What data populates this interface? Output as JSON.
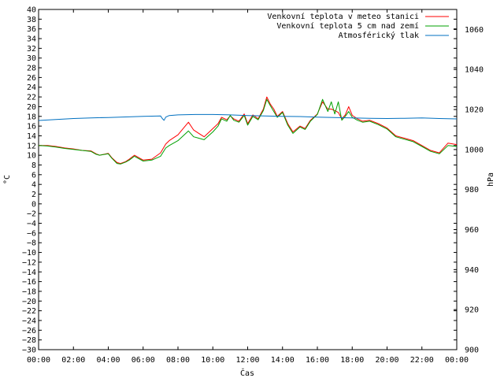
{
  "chart_data": {
    "type": "line",
    "xlabel": "Čas",
    "ylabel": "°C",
    "y2label": "hPa",
    "ylim": [
      -30,
      40
    ],
    "y2lim": [
      900,
      1070
    ],
    "yticks": [
      -30,
      -28,
      -26,
      -24,
      -22,
      -20,
      -18,
      -16,
      -14,
      -12,
      -10,
      -8,
      -6,
      -4,
      -2,
      0,
      2,
      4,
      6,
      8,
      10,
      12,
      14,
      16,
      18,
      20,
      22,
      24,
      26,
      28,
      30,
      32,
      34,
      36,
      38,
      40
    ],
    "y2ticks": [
      900,
      920,
      940,
      960,
      980,
      1000,
      1020,
      1040,
      1060
    ],
    "xticks": [
      "00:00",
      "02:00",
      "04:00",
      "06:00",
      "08:00",
      "10:00",
      "12:00",
      "14:00",
      "16:00",
      "18:00",
      "20:00",
      "22:00",
      "00:00"
    ],
    "xlim_hours": [
      0,
      24
    ],
    "legend_position": "top-right",
    "series": [
      {
        "name": "Venkovní teplota v meteo stanici",
        "color": "#ff0000",
        "axis": "left",
        "x": [
          0,
          0.5,
          1,
          1.5,
          2,
          2.5,
          3,
          3.3,
          3.5,
          4,
          4.2,
          4.5,
          4.7,
          5,
          5.2,
          5.5,
          6,
          6.5,
          7,
          7.3,
          7.5,
          8,
          8.3,
          8.6,
          8.9,
          9.2,
          9.5,
          10,
          10.3,
          10.5,
          10.8,
          11,
          11.2,
          11.5,
          11.8,
          12,
          12.3,
          12.6,
          12.9,
          13.1,
          13.3,
          13.5,
          13.7,
          14,
          14.3,
          14.6,
          15,
          15.3,
          15.6,
          16,
          16.3,
          16.6,
          16.8,
          17,
          17.2,
          17.4,
          17.6,
          17.8,
          18,
          18.3,
          18.6,
          19,
          19.5,
          20,
          20.5,
          21,
          21.5,
          22,
          22.5,
          23,
          23.5,
          24
        ],
        "y": [
          12,
          12,
          11.8,
          11.5,
          11.3,
          11,
          10.9,
          10.3,
          10,
          10.4,
          9.5,
          8.5,
          8.3,
          8.7,
          9.2,
          10,
          9,
          9.2,
          10.5,
          12.3,
          13,
          14.2,
          15.5,
          16.8,
          15.2,
          14.5,
          13.8,
          15.5,
          16.5,
          17.8,
          17.3,
          18.1,
          17.5,
          17,
          18.5,
          16.5,
          18.3,
          17.5,
          19.5,
          22,
          20.5,
          19.5,
          18,
          19,
          16.5,
          14.8,
          16,
          15.5,
          17.2,
          18.5,
          21,
          19.5,
          19.5,
          19.2,
          18.8,
          17.5,
          18.3,
          20,
          18.2,
          17.5,
          17,
          17.2,
          16.5,
          15.6,
          14,
          13.5,
          13,
          12,
          11,
          10.5,
          12.5,
          12.2
        ]
      },
      {
        "name": "Venkovní teplota 5 cm nad zemí",
        "color": "#00a000",
        "axis": "left",
        "x": [
          0,
          0.5,
          1,
          1.5,
          2,
          2.5,
          3,
          3.3,
          3.5,
          4,
          4.2,
          4.5,
          4.7,
          5,
          5.2,
          5.5,
          6,
          6.5,
          7,
          7.3,
          7.5,
          8,
          8.3,
          8.6,
          8.9,
          9.2,
          9.5,
          10,
          10.3,
          10.5,
          10.8,
          11,
          11.2,
          11.5,
          11.8,
          12,
          12.3,
          12.6,
          12.9,
          13.1,
          13.3,
          13.5,
          13.7,
          14,
          14.3,
          14.6,
          15,
          15.3,
          15.6,
          16,
          16.3,
          16.6,
          16.8,
          17,
          17.2,
          17.4,
          17.6,
          17.8,
          18,
          18.3,
          18.6,
          19,
          19.5,
          20,
          20.5,
          21,
          21.5,
          22,
          22.5,
          23,
          23.5,
          24
        ],
        "y": [
          12,
          11.9,
          11.7,
          11.4,
          11.2,
          11,
          10.8,
          10.2,
          10,
          10.3,
          9.4,
          8.3,
          8.2,
          8.6,
          9,
          9.8,
          8.8,
          9,
          9.8,
          11.5,
          12,
          13,
          14,
          15,
          13.8,
          13.5,
          13.2,
          14.8,
          16,
          17.5,
          17,
          18.2,
          17.2,
          16.8,
          18.2,
          16.2,
          18,
          17.3,
          19.2,
          21.5,
          20.2,
          19,
          17.8,
          18.8,
          16.2,
          14.5,
          15.8,
          15.3,
          17,
          18.4,
          21.5,
          19,
          21,
          18.5,
          21,
          17.2,
          18,
          19,
          17.8,
          17.2,
          16.8,
          17,
          16.3,
          15.4,
          13.8,
          13.3,
          12.8,
          11.8,
          10.8,
          10.3,
          12,
          11.8
        ]
      },
      {
        "name": "Atmosférický tlak",
        "color": "#0070c0",
        "axis": "right",
        "x": [
          0,
          1,
          2,
          3,
          4,
          5,
          6,
          7,
          7.1,
          7.2,
          7.3,
          7.5,
          8,
          9,
          10,
          11,
          12,
          13,
          14,
          15,
          16,
          17,
          18,
          19,
          20,
          21,
          22,
          23,
          24
        ],
        "y": [
          1014.5,
          1015,
          1015.5,
          1015.8,
          1016,
          1016.3,
          1016.6,
          1016.8,
          1015.5,
          1014.6,
          1016.2,
          1017,
          1017.3,
          1017.5,
          1017.5,
          1017.3,
          1017,
          1016.8,
          1016.6,
          1016.5,
          1016.2,
          1016,
          1015.8,
          1015.6,
          1015.5,
          1015.6,
          1015.8,
          1015.5,
          1015.3
        ]
      }
    ]
  }
}
